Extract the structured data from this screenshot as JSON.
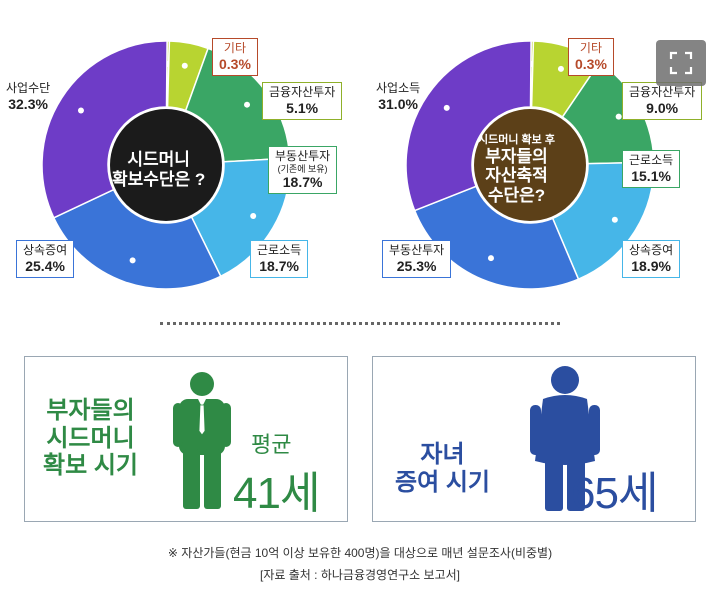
{
  "chart_data": [
    {
      "type": "pie",
      "donut": true,
      "title": "",
      "center_lines": [
        "시드머니",
        "확보수단은 ?"
      ],
      "slices": [
        {
          "label": "기타",
          "value": 0.3,
          "display": "0.3%",
          "color": "#bdd93b"
        },
        {
          "label": "금융자산투자",
          "value": 5.1,
          "display": "5.1%",
          "color": "#b8d431"
        },
        {
          "label": "부동산투자",
          "sublabel": "(기존에 보유)",
          "value": 18.7,
          "display": "18.7%",
          "color": "#3aa665"
        },
        {
          "label": "근로소득",
          "value": 18.7,
          "display": "18.7%",
          "color": "#46b6e8"
        },
        {
          "label": "상속증여",
          "value": 25.4,
          "display": "25.4%",
          "color": "#3a74d8"
        },
        {
          "label": "사업수단",
          "value": 32.3,
          "display": "32.3%",
          "color": "#6e3cc7"
        }
      ]
    },
    {
      "type": "pie",
      "donut": true,
      "title": "",
      "center_lines": [
        "시드머니 확보 후",
        "부자들의",
        "자산축적",
        "수단은?"
      ],
      "slices": [
        {
          "label": "기타",
          "value": 0.3,
          "display": "0.3%",
          "color": "#bdd93b"
        },
        {
          "label": "금융자산투자",
          "value": 9.0,
          "display": "9.0%",
          "color": "#b8d431"
        },
        {
          "label": "근로소득",
          "value": 15.1,
          "display": "15.1%",
          "color": "#3aa665"
        },
        {
          "label": "상속증여",
          "value": 18.9,
          "display": "18.9%",
          "color": "#46b6e8"
        },
        {
          "label": "부동산투자",
          "value": 25.3,
          "display": "25.3%",
          "color": "#3a74d8"
        },
        {
          "label": "사업소득",
          "value": 31.0,
          "display": "31.0%",
          "color": "#6e3cc7"
        }
      ]
    }
  ],
  "panels": {
    "left": {
      "lines": [
        "부자들의",
        "시드머니",
        "확보 시기"
      ],
      "avg_label": "평균",
      "age": "41세",
      "color": "#2f8a45"
    },
    "right": {
      "lines": [
        "자녀",
        "증여 시기"
      ],
      "age": "65세",
      "color": "#2b4ea0"
    }
  },
  "footer": {
    "note": "※ 자산가들(현금 10억 이상 보유한 400명)을 대상으로 매년 설문조사(비중별)",
    "source": "[자료 출처 : 하나금융경영연구소 보고서]"
  },
  "icons": {
    "expand": "expand-icon",
    "person": "person-icon"
  }
}
